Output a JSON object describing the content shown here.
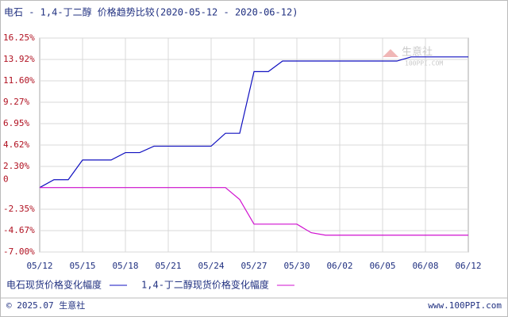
{
  "chart_data": {
    "type": "line",
    "title": "电石 - 1,4-丁二醇 价格趋势比较(2020-05-12 - 2020-06-12)",
    "categories": [
      "05/12",
      null,
      null,
      "05/15",
      null,
      null,
      "05/18",
      null,
      null,
      "05/21",
      null,
      null,
      "05/24",
      null,
      null,
      "05/27",
      null,
      null,
      "05/30",
      null,
      null,
      "06/02",
      null,
      null,
      "06/05",
      null,
      null,
      "06/08",
      null,
      null,
      "06/12"
    ],
    "series": [
      {
        "name": "电石现货价格变化幅度",
        "color": "#1010c0",
        "values": [
          0,
          0.86,
          0.86,
          3.0,
          3.0,
          3.0,
          3.8,
          3.8,
          4.5,
          4.5,
          4.5,
          4.5,
          4.5,
          5.9,
          5.9,
          12.6,
          12.6,
          13.75,
          13.75,
          13.75,
          13.75,
          13.75,
          13.75,
          13.75,
          13.75,
          13.75,
          14.2,
          14.2,
          14.2,
          14.2,
          14.2
        ]
      },
      {
        "name": "1,4-丁二醇现货价格变化幅度",
        "color": "#d010d0",
        "values": [
          0,
          0,
          0,
          0,
          0,
          0,
          0,
          0,
          0,
          0,
          0,
          0,
          0,
          0,
          -1.3,
          -3.97,
          -3.97,
          -3.97,
          -3.97,
          -4.9,
          -5.17,
          -5.17,
          -5.17,
          -5.17,
          -5.17,
          -5.17,
          -5.17,
          -5.17,
          -5.17,
          -5.17,
          -5.17
        ]
      }
    ],
    "ylim": [
      -7.0,
      16.25
    ],
    "yticks": [
      {
        "value": 16.25,
        "label": "16.25%"
      },
      {
        "value": 13.92,
        "label": "13.92%"
      },
      {
        "value": 11.6,
        "label": "11.60%"
      },
      {
        "value": 9.27,
        "label": "9.27%"
      },
      {
        "value": 6.95,
        "label": "6.95%"
      },
      {
        "value": 4.62,
        "label": "4.62%"
      },
      {
        "value": 2.3,
        "label": "2.30%"
      },
      0,
      {
        "value": -2.35,
        "label": "-2.35%"
      },
      {
        "value": -4.67,
        "label": "-4.67%"
      },
      {
        "value": -7.0,
        "label": "-7.00%"
      }
    ],
    "grid": true,
    "watermark": {
      "name": "生意社",
      "site": "100PPI.COM"
    },
    "footer": {
      "left": "© 2025.07 生意社",
      "right": "www.100PPI.com"
    }
  }
}
